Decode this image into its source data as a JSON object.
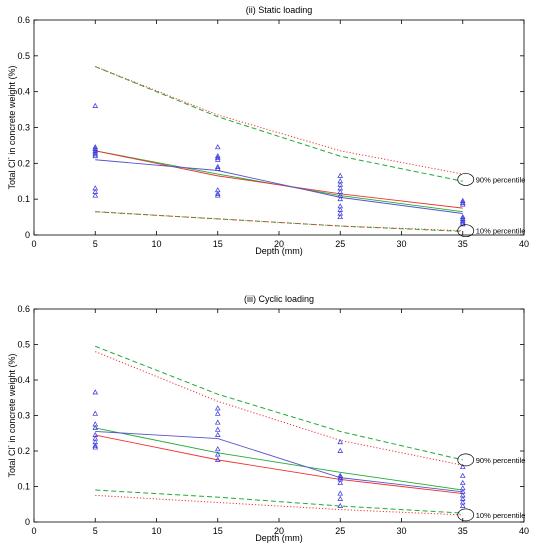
{
  "chart_data": [
    {
      "type": "line",
      "title": "(ii) Static loading",
      "xlabel": "Depth (mm)",
      "ylabel_main": "Total Cl",
      "ylabel_sup": "-",
      "ylabel_rest": " in concrete weight (%)",
      "xlim": [
        0,
        40
      ],
      "ylim": [
        0,
        0.6
      ],
      "xticks": [
        "0",
        "5",
        "10",
        "15",
        "20",
        "25",
        "30",
        "35",
        "40"
      ],
      "yticks": [
        "0",
        "0.1",
        "0.2",
        "0.3",
        "0.4",
        "0.5",
        "0.6"
      ],
      "grid": false,
      "legend": "none",
      "colors": {
        "green": "#22aa33",
        "red": "#ee3333",
        "blue": "#5555cc",
        "markers": "#3333dd"
      },
      "scatter_points": [
        [
          5,
          0.36
        ],
        [
          5,
          0.245
        ],
        [
          5,
          0.24
        ],
        [
          5,
          0.235
        ],
        [
          5,
          0.23
        ],
        [
          5,
          0.225
        ],
        [
          5,
          0.22
        ],
        [
          5,
          0.13
        ],
        [
          5,
          0.12
        ],
        [
          5,
          0.11
        ],
        [
          15,
          0.245
        ],
        [
          15,
          0.22
        ],
        [
          15,
          0.215
        ],
        [
          15,
          0.21
        ],
        [
          15,
          0.19
        ],
        [
          15,
          0.185
        ],
        [
          15,
          0.125
        ],
        [
          15,
          0.115
        ],
        [
          15,
          0.11
        ],
        [
          25,
          0.165
        ],
        [
          25,
          0.15
        ],
        [
          25,
          0.14
        ],
        [
          25,
          0.13
        ],
        [
          25,
          0.12
        ],
        [
          25,
          0.11
        ],
        [
          25,
          0.1
        ],
        [
          25,
          0.08
        ],
        [
          25,
          0.07
        ],
        [
          25,
          0.06
        ],
        [
          25,
          0.05
        ],
        [
          35,
          0.095
        ],
        [
          35,
          0.09
        ],
        [
          35,
          0.085
        ],
        [
          35,
          0.05
        ],
        [
          35,
          0.045
        ],
        [
          35,
          0.04
        ],
        [
          35,
          0.035
        ],
        [
          35,
          0.03
        ]
      ],
      "series": [
        {
          "x": [
            5,
            15,
            25,
            35
          ],
          "values": [
            0.47,
            0.33,
            0.22,
            0.15
          ],
          "color": "#22aa33",
          "dash": "dashed"
        },
        {
          "x": [
            5,
            15,
            25,
            35
          ],
          "values": [
            0.47,
            0.335,
            0.235,
            0.17
          ],
          "color": "#ee3333",
          "dash": "dotted"
        },
        {
          "x": [
            5,
            15,
            25,
            35
          ],
          "values": [
            0.065,
            0.045,
            0.025,
            0.01
          ],
          "color": "#22aa33",
          "dash": "dashed"
        },
        {
          "x": [
            5,
            15,
            25,
            35
          ],
          "values": [
            0.065,
            0.045,
            0.025,
            0.012
          ],
          "color": "#ee3333",
          "dash": "dotted"
        },
        {
          "x": [
            5,
            15,
            25,
            35
          ],
          "values": [
            0.235,
            0.17,
            0.11,
            0.065
          ],
          "color": "#22aa33",
          "dash": "solid"
        },
        {
          "x": [
            5,
            15,
            25,
            35
          ],
          "values": [
            0.235,
            0.165,
            0.115,
            0.075
          ],
          "color": "#ee3333",
          "dash": "solid"
        },
        {
          "x": [
            5,
            15,
            25,
            35
          ],
          "values": [
            0.21,
            0.18,
            0.105,
            0.06
          ],
          "color": "#5555cc",
          "dash": "solid"
        }
      ],
      "annotations": [
        {
          "text": "90% percentile",
          "x": 35,
          "y": 0.155
        },
        {
          "text": "10% percentile",
          "x": 35,
          "y": 0.012
        }
      ]
    },
    {
      "type": "line",
      "title": "(iii) Cyclic loading",
      "xlabel": "Depth (mm)",
      "ylabel_main": "Total Cl",
      "ylabel_sup": "-",
      "ylabel_rest": " in concrete weight (%)",
      "xlim": [
        0,
        40
      ],
      "ylim": [
        0,
        0.6
      ],
      "xticks": [
        "0",
        "5",
        "10",
        "15",
        "20",
        "25",
        "30",
        "35",
        "40"
      ],
      "yticks": [
        "0",
        "0.1",
        "0.2",
        "0.3",
        "0.4",
        "0.5",
        "0.6"
      ],
      "grid": false,
      "legend": "none",
      "colors": {
        "green": "#22aa33",
        "red": "#ee3333",
        "blue": "#5555cc",
        "markers": "#3333dd"
      },
      "scatter_points": [
        [
          5,
          0.365
        ],
        [
          5,
          0.305
        ],
        [
          5,
          0.275
        ],
        [
          5,
          0.265
        ],
        [
          5,
          0.245
        ],
        [
          5,
          0.235
        ],
        [
          5,
          0.225
        ],
        [
          5,
          0.215
        ],
        [
          5,
          0.21
        ],
        [
          15,
          0.32
        ],
        [
          15,
          0.305
        ],
        [
          15,
          0.28
        ],
        [
          15,
          0.26
        ],
        [
          15,
          0.245
        ],
        [
          15,
          0.205
        ],
        [
          15,
          0.19
        ],
        [
          15,
          0.175
        ],
        [
          25,
          0.225
        ],
        [
          25,
          0.2
        ],
        [
          25,
          0.13
        ],
        [
          25,
          0.125
        ],
        [
          25,
          0.12
        ],
        [
          25,
          0.11
        ],
        [
          25,
          0.08
        ],
        [
          25,
          0.065
        ],
        [
          25,
          0.045
        ],
        [
          35,
          0.155
        ],
        [
          35,
          0.13
        ],
        [
          35,
          0.11
        ],
        [
          35,
          0.095
        ],
        [
          35,
          0.085
        ],
        [
          35,
          0.075
        ],
        [
          35,
          0.065
        ],
        [
          35,
          0.055
        ],
        [
          35,
          0.045
        ]
      ],
      "series": [
        {
          "x": [
            5,
            15,
            25,
            35
          ],
          "values": [
            0.495,
            0.36,
            0.255,
            0.175
          ],
          "color": "#22aa33",
          "dash": "dashed"
        },
        {
          "x": [
            5,
            15,
            25,
            35
          ],
          "values": [
            0.48,
            0.34,
            0.23,
            0.16
          ],
          "color": "#ee3333",
          "dash": "dotted"
        },
        {
          "x": [
            5,
            15,
            25,
            35
          ],
          "values": [
            0.09,
            0.07,
            0.045,
            0.025
          ],
          "color": "#22aa33",
          "dash": "dashed"
        },
        {
          "x": [
            5,
            15,
            25,
            35
          ],
          "values": [
            0.075,
            0.055,
            0.035,
            0.02
          ],
          "color": "#ee3333",
          "dash": "dotted"
        },
        {
          "x": [
            5,
            15,
            25,
            35
          ],
          "values": [
            0.265,
            0.195,
            0.14,
            0.09
          ],
          "color": "#22aa33",
          "dash": "solid"
        },
        {
          "x": [
            5,
            15,
            25,
            35
          ],
          "values": [
            0.245,
            0.175,
            0.12,
            0.08
          ],
          "color": "#ee3333",
          "dash": "solid"
        },
        {
          "x": [
            5,
            15,
            25,
            35
          ],
          "values": [
            0.255,
            0.235,
            0.125,
            0.085
          ],
          "color": "#5555cc",
          "dash": "solid"
        }
      ],
      "annotations": [
        {
          "text": "90% percentile",
          "x": 35,
          "y": 0.175
        },
        {
          "text": "10% percentile",
          "x": 35,
          "y": 0.02
        }
      ]
    }
  ]
}
